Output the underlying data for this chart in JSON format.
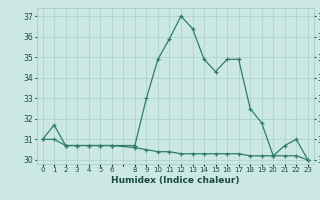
{
  "xlabel": "Humidex (Indice chaleur)",
  "x_all": [
    0,
    1,
    2,
    3,
    4,
    5,
    6,
    7,
    8,
    9,
    10,
    11,
    12,
    13,
    14,
    15,
    16,
    17,
    18,
    19,
    20,
    21,
    22,
    23
  ],
  "x_data": [
    0,
    1,
    2,
    3,
    4,
    5,
    6,
    8,
    9,
    10,
    11,
    12,
    13,
    14,
    15,
    16,
    17,
    18,
    19,
    20,
    21,
    22,
    23
  ],
  "y_main": [
    31.0,
    31.7,
    30.7,
    30.7,
    30.7,
    30.7,
    30.7,
    30.7,
    33.0,
    34.9,
    35.9,
    37.0,
    36.4,
    34.9,
    34.3,
    34.9,
    34.9,
    32.5,
    31.8,
    30.2,
    30.7,
    31.0,
    30.0
  ],
  "y_flat": [
    31.0,
    31.0,
    30.7,
    30.7,
    30.7,
    30.7,
    30.7,
    30.6,
    30.5,
    30.4,
    30.4,
    30.3,
    30.3,
    30.3,
    30.3,
    30.3,
    30.3,
    30.2,
    30.2,
    30.2,
    30.2,
    30.2,
    30.0
  ],
  "ylim": [
    29.8,
    37.4
  ],
  "xlim": [
    -0.5,
    23.5
  ],
  "yticks": [
    30,
    31,
    32,
    33,
    34,
    35,
    36,
    37
  ],
  "xtick_labels": [
    "0",
    "1",
    "2",
    "3",
    "4",
    "5",
    "6",
    "",
    "8",
    "9",
    "10",
    "11",
    "12",
    "13",
    "14",
    "15",
    "16",
    "17",
    "18",
    "19",
    "20",
    "21",
    "22",
    "23"
  ],
  "line_color": "#2e7d6e",
  "bg_color": "#cce8e3",
  "grid_color": "#aacfc8",
  "label_color": "#1a4a40"
}
